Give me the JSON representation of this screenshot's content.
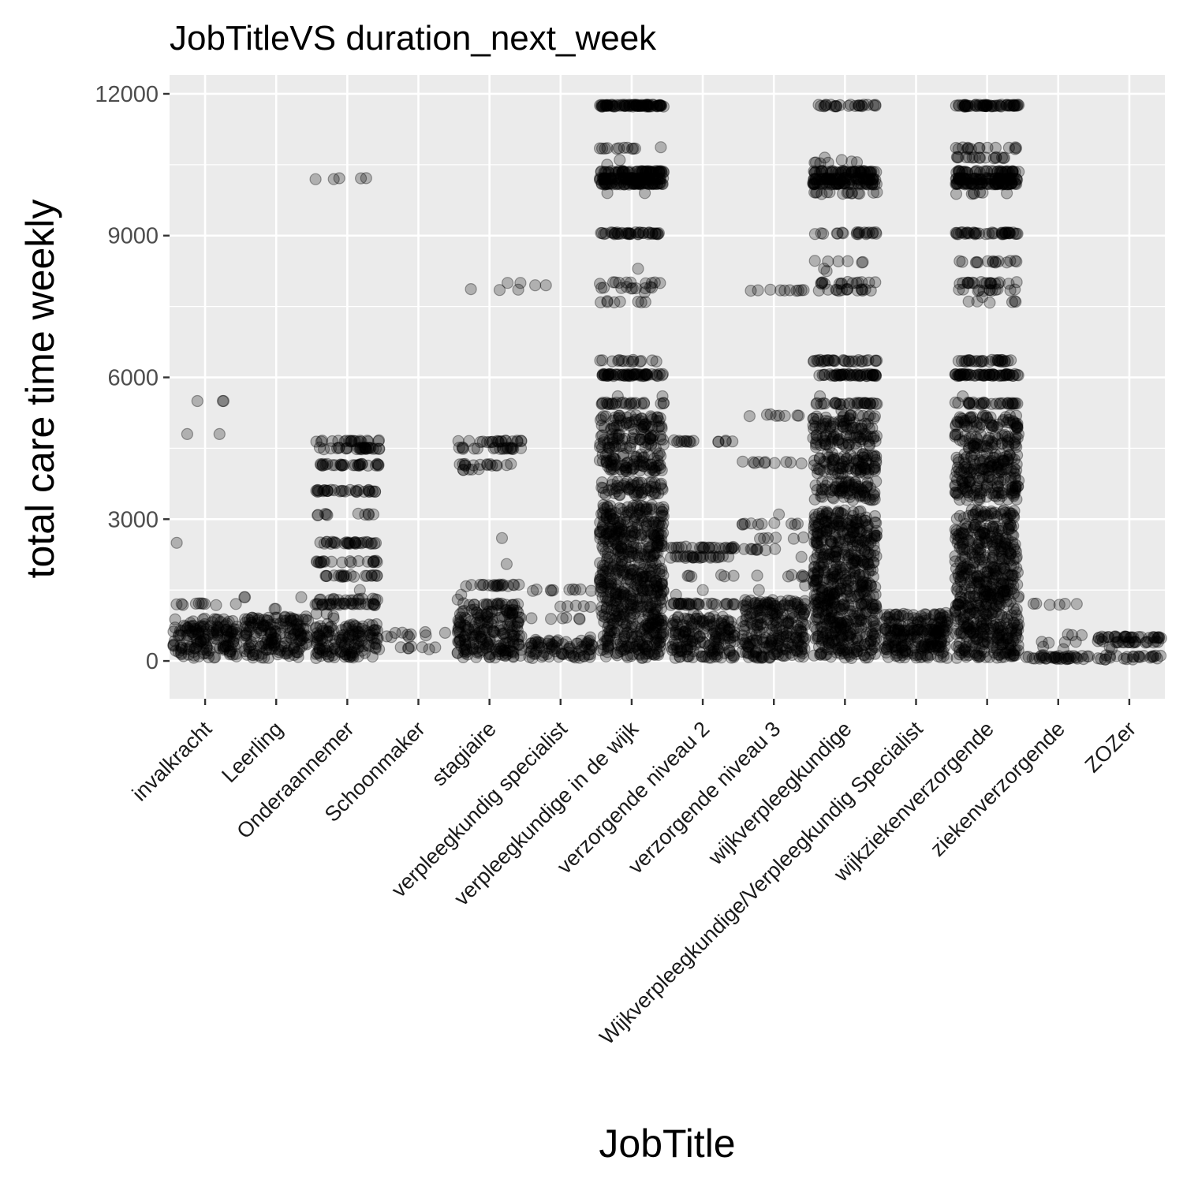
{
  "chart_data": {
    "type": "scatter",
    "title": "JobTitleVS duration_next_week",
    "xlabel": "JobTitle",
    "ylabel": "total care time weekly",
    "categories": [
      "invalkracht",
      "Leerling",
      "Onderaannemer",
      "Schoonmaker",
      "stagiaire",
      "verpleegkundig specialist",
      "verpleegkundige in de wijk",
      "verzorgende niveau 2",
      "verzorgende niveau 3",
      "wijkverpleegkundige",
      "Wijkverpleegkundige/Verpleegkundig Specialist",
      "wijkziekenverzorgende",
      "ziekenverzorgende",
      "ZOZer"
    ],
    "ylim": [
      -800,
      12400
    ],
    "yticks": [
      0,
      3000,
      6000,
      9000,
      12000
    ],
    "ytick_labels": [
      "0",
      "3000",
      "6000",
      "9000",
      "12000"
    ],
    "grid": true,
    "panel_color": "#ebebeb",
    "point_color": "#000000",
    "point_alpha": 0.25,
    "jitter": 0.45,
    "series": [
      {
        "category": "invalkracht",
        "dense": [
          [
            60,
            900
          ]
        ],
        "levels": [
          [
            1200,
            10
          ]
        ],
        "points": [
          5500,
          5500,
          5500,
          4800,
          4800,
          2500
        ]
      },
      {
        "category": "Leerling",
        "dense": [
          [
            60,
            950
          ]
        ],
        "levels": [],
        "points": [
          1350,
          1350,
          1350,
          1100,
          1100
        ]
      },
      {
        "category": "Onderaannemer",
        "dense": [
          [
            60,
            800
          ]
        ],
        "levels": [
          [
            1200,
            30
          ],
          [
            1300,
            15
          ],
          [
            1800,
            20
          ],
          [
            2100,
            20
          ],
          [
            2500,
            30
          ],
          [
            3100,
            10
          ],
          [
            3600,
            30
          ],
          [
            4150,
            30
          ],
          [
            4500,
            30
          ],
          [
            4650,
            20
          ],
          [
            10200,
            5
          ]
        ],
        "points": [
          1000,
          1000,
          950,
          900,
          1500
        ]
      },
      {
        "category": "Schoonmaker",
        "dense": [],
        "levels": [
          [
            600,
            4
          ],
          [
            550,
            3
          ],
          [
            500,
            3
          ],
          [
            300,
            4
          ],
          [
            250,
            3
          ]
        ],
        "points": []
      },
      {
        "category": "stagiaire",
        "dense": [
          [
            60,
            1100
          ]
        ],
        "levels": [
          [
            1200,
            20
          ],
          [
            1600,
            20
          ],
          [
            4050,
            5
          ],
          [
            4150,
            15
          ],
          [
            4500,
            20
          ],
          [
            4650,
            20
          ],
          [
            7850,
            3
          ]
        ],
        "points": [
          2600,
          2050,
          8000,
          8000,
          1400,
          1300
        ]
      },
      {
        "category": "verpleegkundig specialist",
        "dense": [
          [
            60,
            450
          ]
        ],
        "levels": [
          [
            1500,
            10
          ],
          [
            1150,
            5
          ],
          [
            900,
            6
          ]
        ],
        "points": [
          7950,
          7950,
          500,
          400,
          300,
          200
        ]
      },
      {
        "category": "verpleegkundige in de wijk",
        "dense": [
          [
            60,
            2800
          ],
          [
            2800,
            3300
          ],
          [
            3500,
            3800
          ],
          [
            4000,
            4400
          ],
          [
            4500,
            4800
          ],
          [
            4900,
            5200
          ]
        ],
        "levels": [
          [
            5450,
            25
          ],
          [
            6050,
            60
          ],
          [
            6350,
            15
          ],
          [
            7600,
            8
          ],
          [
            7900,
            10
          ],
          [
            8000,
            10
          ],
          [
            9050,
            40
          ],
          [
            10100,
            60
          ],
          [
            10200,
            60
          ],
          [
            10350,
            60
          ],
          [
            10850,
            12
          ],
          [
            11750,
            80
          ]
        ],
        "points": [
          5600,
          5600,
          9900,
          9900,
          10500,
          10600,
          8300,
          7800
        ]
      },
      {
        "category": "verzorgende niveau 2",
        "dense": [
          [
            60,
            950
          ]
        ],
        "levels": [
          [
            1200,
            30
          ],
          [
            1800,
            6
          ],
          [
            2200,
            25
          ],
          [
            2400,
            25
          ],
          [
            4650,
            15
          ]
        ],
        "points": [
          1400,
          1500,
          1000,
          950
        ]
      },
      {
        "category": "verzorgende niveau 3",
        "dense": [
          [
            60,
            1300
          ]
        ],
        "levels": [
          [
            1800,
            6
          ],
          [
            2350,
            8
          ],
          [
            2600,
            6
          ],
          [
            2900,
            10
          ],
          [
            4200,
            10
          ],
          [
            5200,
            8
          ],
          [
            7850,
            10
          ]
        ],
        "points": [
          1500,
          1600,
          3100,
          2200
        ]
      },
      {
        "category": "wijkverpleegkundige",
        "dense": [
          [
            60,
            3200
          ],
          [
            3400,
            3800
          ],
          [
            3950,
            4400
          ],
          [
            4500,
            4800
          ],
          [
            4900,
            5200
          ]
        ],
        "levels": [
          [
            5450,
            30
          ],
          [
            6050,
            50
          ],
          [
            6350,
            30
          ],
          [
            7850,
            15
          ],
          [
            8000,
            15
          ],
          [
            8450,
            6
          ],
          [
            9050,
            20
          ],
          [
            9900,
            15
          ],
          [
            10100,
            50
          ],
          [
            10200,
            50
          ],
          [
            10350,
            50
          ],
          [
            10550,
            6
          ],
          [
            11750,
            25
          ]
        ],
        "points": [
          5300,
          5600,
          8250,
          8300,
          10600,
          10650
        ]
      },
      {
        "category": "Wijkverpleegkundige/Verpleegkundig Specialist",
        "dense": [
          [
            60,
            1000
          ]
        ],
        "levels": [
          [
            650,
            25
          ],
          [
            300,
            15
          ],
          [
            1000,
            8
          ]
        ],
        "points": [
          900,
          950,
          150,
          100
        ]
      },
      {
        "category": "wijkziekenverzorgende",
        "dense": [
          [
            60,
            2900
          ],
          [
            3000,
            3200
          ],
          [
            3400,
            3900
          ],
          [
            3950,
            4400
          ],
          [
            4500,
            4800
          ],
          [
            4900,
            5200
          ]
        ],
        "levels": [
          [
            5450,
            30
          ],
          [
            6050,
            60
          ],
          [
            6350,
            30
          ],
          [
            7600,
            5
          ],
          [
            7850,
            12
          ],
          [
            8000,
            20
          ],
          [
            8450,
            15
          ],
          [
            9050,
            40
          ],
          [
            9900,
            6
          ],
          [
            10100,
            60
          ],
          [
            10200,
            60
          ],
          [
            10350,
            40
          ],
          [
            10650,
            15
          ],
          [
            10850,
            15
          ],
          [
            11750,
            60
          ]
        ],
        "points": [
          5600,
          7600,
          7700,
          9900,
          10650
        ]
      },
      {
        "category": "ziekenverzorgende",
        "dense": [],
        "levels": [
          [
            60,
            25
          ],
          [
            100,
            15
          ],
          [
            1200,
            6
          ],
          [
            400,
            4
          ],
          [
            550,
            3
          ]
        ],
        "points": [
          300,
          250
        ]
      },
      {
        "category": "ZOZer",
        "dense": [],
        "levels": [
          [
            500,
            30
          ],
          [
            400,
            20
          ],
          [
            100,
            15
          ],
          [
            50,
            10
          ]
        ],
        "points": [
          300,
          250,
          450
        ]
      }
    ]
  }
}
